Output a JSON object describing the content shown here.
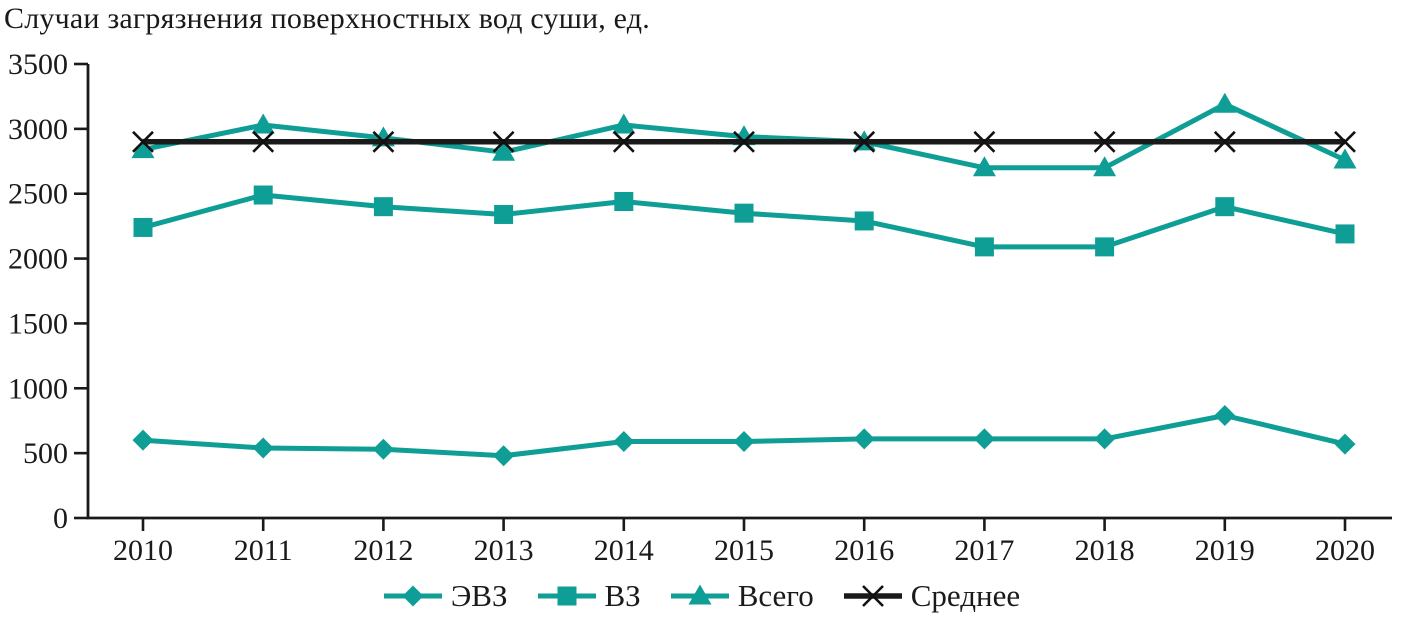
{
  "chart_data": {
    "type": "line",
    "title": "Случаи загрязнения поверхностных вод суши, ед.",
    "xlabel": "",
    "ylabel": "",
    "x": [
      2010,
      2011,
      2012,
      2013,
      2014,
      2015,
      2016,
      2017,
      2018,
      2019,
      2020
    ],
    "ylim": [
      0,
      3500
    ],
    "ytick_step": 500,
    "grid": false,
    "legend_position": "bottom",
    "axis_color": "#1a1a1a",
    "series": [
      {
        "name": "ЭВЗ",
        "marker": "diamond",
        "color": "#0f9e96",
        "values": [
          600,
          540,
          530,
          480,
          590,
          590,
          610,
          610,
          610,
          790,
          570
        ]
      },
      {
        "name": "ВЗ",
        "marker": "square",
        "color": "#0f9e96",
        "values": [
          2240,
          2490,
          2400,
          2340,
          2440,
          2350,
          2290,
          2090,
          2090,
          2400,
          2190
        ]
      },
      {
        "name": "Всего",
        "marker": "triangle",
        "color": "#0f9e96",
        "values": [
          2840,
          3030,
          2930,
          2820,
          3030,
          2940,
          2900,
          2700,
          2700,
          3190,
          2760
        ]
      },
      {
        "name": "Среднее",
        "marker": "x",
        "color": "#1a1a1a",
        "values": [
          2900,
          2900,
          2900,
          2900,
          2900,
          2900,
          2900,
          2900,
          2900,
          2900,
          2900
        ]
      }
    ]
  }
}
